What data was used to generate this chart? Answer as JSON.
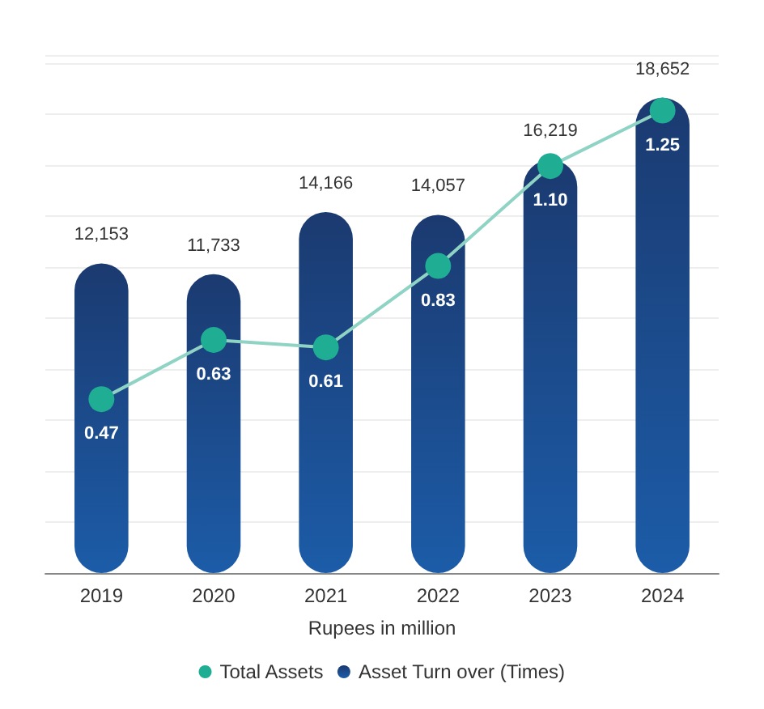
{
  "chart_data": {
    "type": "bar",
    "xlabel": "Rupees in million",
    "categories": [
      "2019",
      "2020",
      "2021",
      "2022",
      "2023",
      "2024"
    ],
    "series": [
      {
        "name": "Asset Turn over (Times)",
        "color": "#1b3a70",
        "values": [
          12153,
          11733,
          14166,
          14057,
          16219,
          18652
        ],
        "value_labels": [
          "12,153",
          "11,733",
          "14,166",
          "14,057",
          "16,219",
          "18,652"
        ]
      },
      {
        "name": "Total Assets",
        "type": "line",
        "axis": "y2",
        "color": "#1fae94",
        "values": [
          0.47,
          0.63,
          0.61,
          0.83,
          1.1,
          1.25
        ],
        "value_labels": [
          "0.47",
          "0.63",
          "0.61",
          "0.83",
          "1.10",
          "1.25"
        ]
      }
    ],
    "tick_labels": "x",
    "grid": "y",
    "legend": "bottom",
    "marker": "circle",
    "line_style": "solid"
  }
}
